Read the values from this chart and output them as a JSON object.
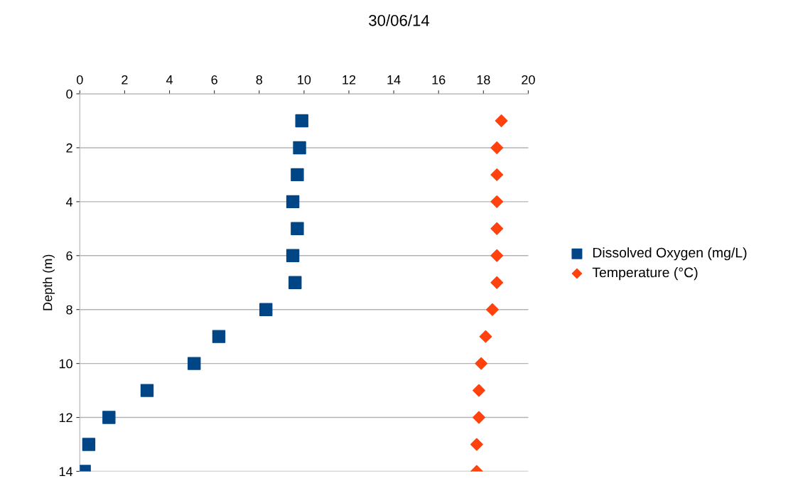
{
  "chart_data": {
    "type": "scatter",
    "title": "30/06/14",
    "ylabel": "Depth (m)",
    "series": [
      {
        "name": "Dissolved Oxygen (mg/L)",
        "color": "#004586",
        "marker": "square",
        "x": [
          9.9,
          9.8,
          9.7,
          9.5,
          9.7,
          9.5,
          9.6,
          8.3,
          6.2,
          5.1,
          3.0,
          1.3,
          0.4,
          0.2
        ],
        "values": [
          1,
          2,
          3,
          4,
          5,
          6,
          7,
          8,
          9,
          10,
          11,
          12,
          13,
          14
        ]
      },
      {
        "name": "Temperature (°C)",
        "color": "#ff420e",
        "marker": "diamond",
        "x": [
          18.8,
          18.6,
          18.6,
          18.6,
          18.6,
          18.6,
          18.6,
          18.4,
          18.1,
          17.9,
          17.8,
          17.8,
          17.7,
          17.7
        ],
        "values": [
          1,
          2,
          3,
          4,
          5,
          6,
          7,
          8,
          9,
          10,
          11,
          12,
          13,
          14
        ]
      }
    ],
    "xlim": [
      0,
      20
    ],
    "xticks": [
      0,
      2,
      4,
      6,
      8,
      10,
      12,
      14,
      16,
      18,
      20
    ],
    "ylim": [
      14,
      0
    ],
    "yticks": [
      0,
      2,
      4,
      6,
      8,
      10,
      12,
      14
    ],
    "grid": "y",
    "legend": "right"
  }
}
